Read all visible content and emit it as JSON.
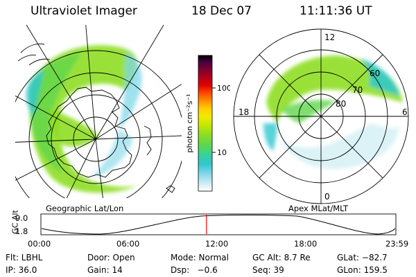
{
  "header": {
    "instrument": "Ultraviolet Imager",
    "date": "18 Dec 07",
    "time": "11:11:36 UT"
  },
  "left_panel": {
    "caption": "Geographic Lat/Lon"
  },
  "right_panel": {
    "caption": "Apex MLat/MLT",
    "mlt_labels": [
      "12",
      "18",
      "6",
      "0"
    ],
    "mlat_labels": [
      "60",
      "70",
      "80"
    ]
  },
  "colorbar": {
    "unit_label": "photon cm⁻²s⁻¹",
    "ticks": [
      {
        "label": "100",
        "value": 100
      },
      {
        "label": "10",
        "value": 10
      }
    ],
    "range": [
      2.5,
      320
    ],
    "scale": "log",
    "colors": [
      "#ffffff",
      "#ccecf2",
      "#7fd7e8",
      "#2ec7d0",
      "#37d39a",
      "#5fd64a",
      "#8ede22",
      "#c8e800",
      "#f2ea00",
      "#ffcc00",
      "#ff9400",
      "#ff4b00",
      "#e20000",
      "#b0001a",
      "#7a0030",
      "#470040",
      "#000000"
    ]
  },
  "altitude_plot": {
    "ylabel": "GC Alt",
    "yticks": [
      "9.0",
      "1.8"
    ],
    "xticks": [
      "00:00",
      "06:00",
      "12:00",
      "18:00",
      "23:59"
    ],
    "current_time_hours": 11.19,
    "marker_color": "#ff0000"
  },
  "status": {
    "row1": [
      "Flt: LBHL",
      "Door: Open",
      "Mode: Normal",
      "GC Alt: 8.7 Re",
      "GLat: −82.7"
    ],
    "row2": [
      "IP: 36.0",
      "Gain: 14",
      "Dsp:   −0.6",
      "Seq: 39",
      "GLon: 159.5"
    ]
  }
}
